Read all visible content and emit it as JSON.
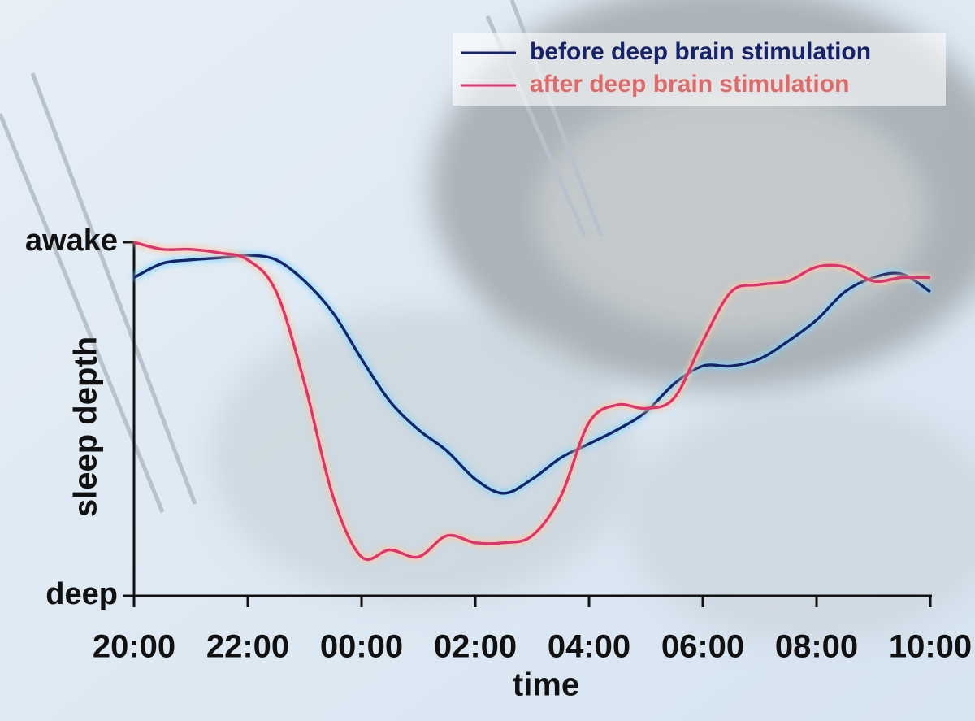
{
  "chart_data": {
    "type": "line",
    "x_label": "time",
    "y_label": "sleep depth",
    "x": [
      20,
      20.5,
      21,
      21.5,
      22,
      22.5,
      23,
      23.5,
      24,
      24.5,
      25,
      25.5,
      26,
      26.5,
      27,
      27.5,
      28,
      28.5,
      29,
      29.5,
      30,
      30.5,
      31,
      31.5,
      32,
      32.5,
      33,
      33.5,
      34
    ],
    "series": [
      {
        "name": "before deep brain stimulation",
        "color": "#16236b",
        "values": [
          0.9,
          0.94,
          0.95,
          0.956,
          0.963,
          0.95,
          0.89,
          0.8,
          0.67,
          0.55,
          0.47,
          0.41,
          0.33,
          0.29,
          0.33,
          0.39,
          0.43,
          0.47,
          0.52,
          0.6,
          0.65,
          0.65,
          0.67,
          0.72,
          0.78,
          0.86,
          0.9,
          0.91,
          0.86
        ]
      },
      {
        "name": "after deep brain stimulation",
        "color": "#e0306e",
        "label_color": "#e06a6a",
        "values": [
          1.0,
          0.98,
          0.98,
          0.97,
          0.95,
          0.86,
          0.6,
          0.28,
          0.11,
          0.13,
          0.11,
          0.17,
          0.15,
          0.15,
          0.17,
          0.28,
          0.49,
          0.54,
          0.53,
          0.56,
          0.72,
          0.86,
          0.88,
          0.89,
          0.93,
          0.93,
          0.89,
          0.9,
          0.9
        ]
      }
    ],
    "xlim": [
      20,
      34
    ],
    "xticks": [
      {
        "value": 20,
        "label": "20:00"
      },
      {
        "value": 22,
        "label": "22:00"
      },
      {
        "value": 24,
        "label": "00:00"
      },
      {
        "value": 26,
        "label": "02:00"
      },
      {
        "value": 28,
        "label": "04:00"
      },
      {
        "value": 30,
        "label": "06:00"
      },
      {
        "value": 32,
        "label": "08:00"
      },
      {
        "value": 34,
        "label": "10:00"
      }
    ],
    "ylim": [
      0,
      1
    ],
    "yticks": [
      {
        "value": 0,
        "label": "deep"
      },
      {
        "value": 1,
        "label": "awake"
      }
    ],
    "legend": "top-right"
  }
}
